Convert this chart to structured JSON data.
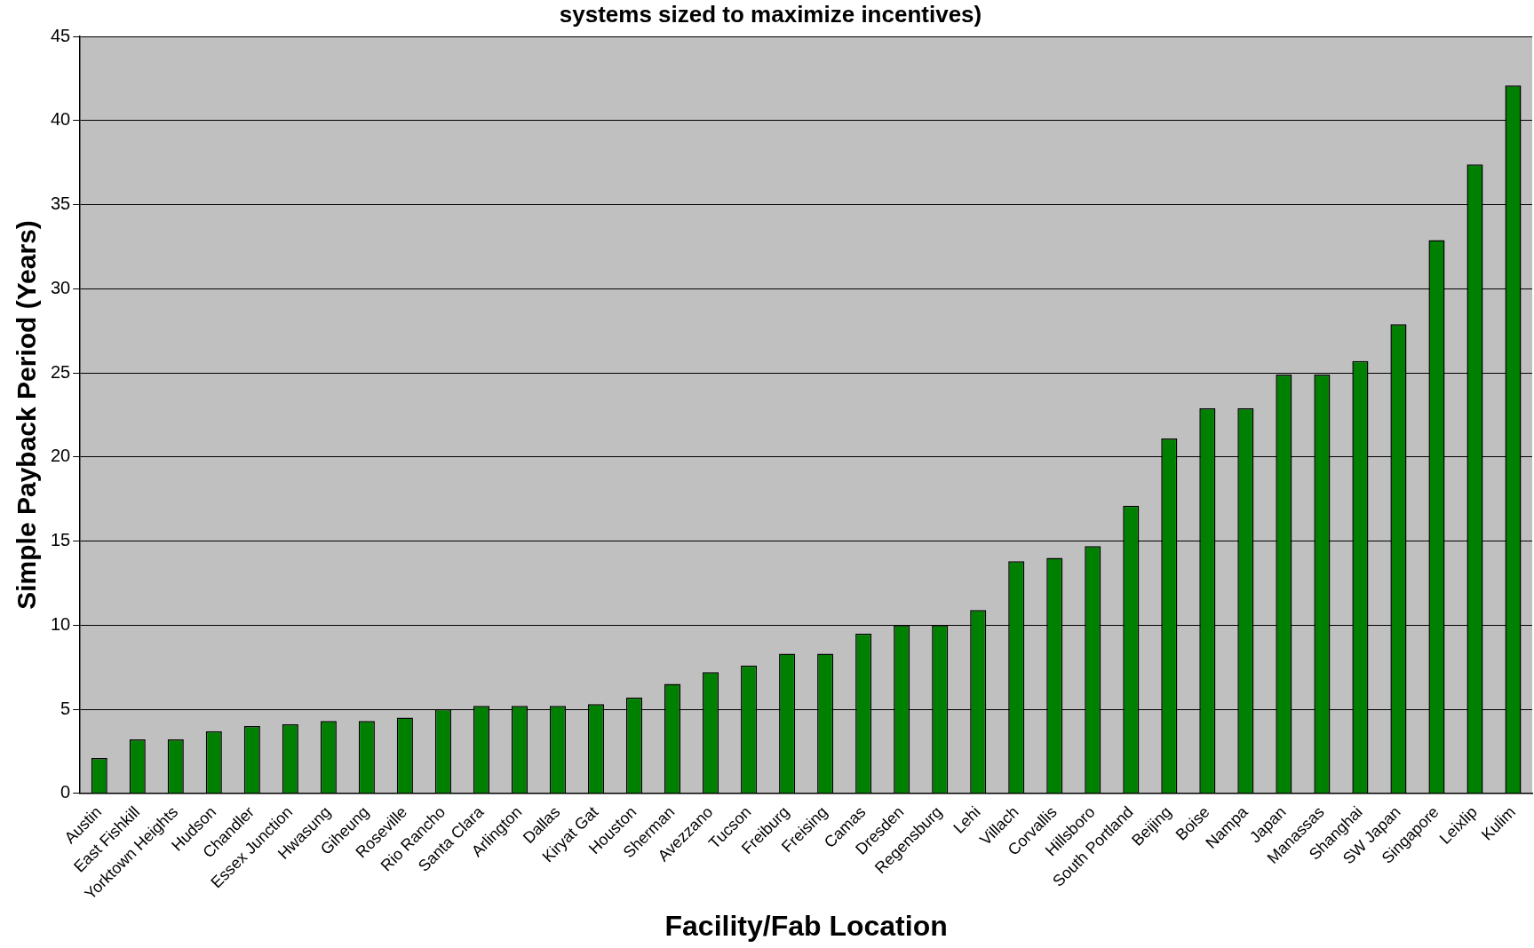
{
  "chart_data": {
    "type": "bar",
    "title": "systems sized to maximize incentives)",
    "xlabel": "Facility/Fab Location",
    "ylabel": "Simple Payback Period (Years)",
    "categories": [
      "Austin",
      "East Fishkill",
      "Yorktown Heights",
      "Hudson",
      "Chandler",
      "Essex Junction",
      "Hwasung",
      "Giheung",
      "Roseville",
      "Rio Rancho",
      "Santa Clara",
      "Arlington",
      "Dallas",
      "Kiryat Gat",
      "Houston",
      "Sherman",
      "Avezzano",
      "Tucson",
      "Freiburg",
      "Freising",
      "Camas",
      "Dresden",
      "Regensburg",
      "Lehi",
      "Villach",
      "Corvallis",
      "Hillsboro",
      "South Portland",
      "Beijing",
      "Boise",
      "Nampa",
      "Japan",
      "Manassas",
      "Shanghai",
      "SW Japan",
      "Singapore",
      "Leixlip",
      "Kulim"
    ],
    "values": [
      2.1,
      3.2,
      3.2,
      3.7,
      4.0,
      4.1,
      4.3,
      4.3,
      4.5,
      5.0,
      5.2,
      5.2,
      5.2,
      5.3,
      5.7,
      6.5,
      7.2,
      7.6,
      8.3,
      8.3,
      9.5,
      10.0,
      10.0,
      10.9,
      13.8,
      14.0,
      14.7,
      17.1,
      21.1,
      22.9,
      22.9,
      24.9,
      24.9,
      25.7,
      27.9,
      32.9,
      37.4,
      42.1
    ],
    "color": "#008000",
    "ylim": [
      0,
      45
    ],
    "yticks": [
      0,
      5,
      10,
      15,
      20,
      25,
      30,
      35,
      40,
      45
    ],
    "grid": "y"
  }
}
